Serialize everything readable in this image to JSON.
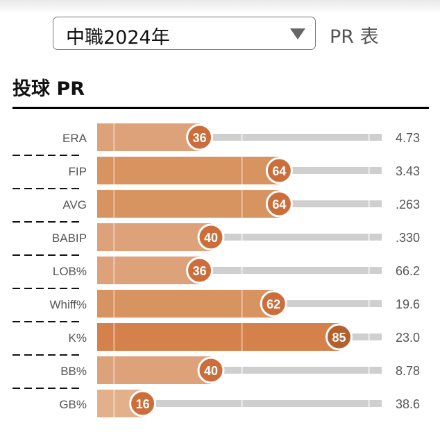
{
  "header": {
    "league_select": "中職2024年",
    "table_label": "PR 表"
  },
  "section_title": "投球 PR",
  "chart_data": {
    "type": "bar",
    "orientation": "horizontal",
    "title": "投球 PR",
    "xlim": [
      0,
      100
    ],
    "categories": [
      "ERA",
      "FIP",
      "AVG",
      "BABIP",
      "LOB%",
      "Whiff%",
      "K%",
      "BB%",
      "GB%"
    ],
    "values": [
      36,
      64,
      64,
      40,
      36,
      62,
      85,
      40,
      16
    ],
    "stat_values": [
      "4.73",
      "3.43",
      ".263",
      ".330",
      "66.2",
      "19.6",
      "23.0",
      "8.78",
      "38.6"
    ]
  }
}
